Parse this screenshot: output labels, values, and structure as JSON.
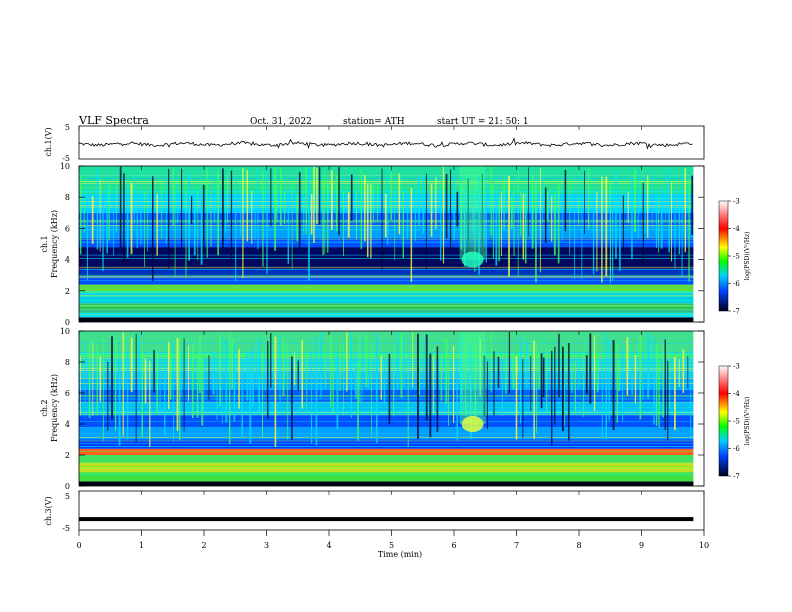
{
  "header": {
    "title": "VLF  Spectra",
    "date": "Oct. 31, 2022",
    "station": "station= ATH",
    "start": "start  UT  =    21: 50: 1"
  },
  "chart_data": [
    {
      "type": "line",
      "panel": "ch1-waveform",
      "ylabel": "ch.1(V)",
      "yticks": [
        "5",
        "-5"
      ],
      "ylim": [
        -5,
        5
      ],
      "xlim": [
        0,
        10
      ],
      "description_values": "noisy waveform around -0.5 V (~ -1 to 1 V)",
      "level": -0.5
    },
    {
      "type": "heatmap",
      "panel": "ch1-spectrogram",
      "ylabel": "ch.1\nFrequency  (kHz)",
      "ylabel_lines": [
        "ch.1",
        "Frequency  (kHz)"
      ],
      "yticks": [
        "0",
        "2",
        "4",
        "6",
        "8",
        "10"
      ],
      "ylim": [
        0,
        10
      ],
      "xlim": [
        0,
        10
      ],
      "data_end_min": 9.83,
      "event_time_min": 6.25,
      "event_freq_khz": 4.0
    },
    {
      "type": "heatmap",
      "panel": "ch2-spectrogram",
      "ylabel": "ch.2\nFrequency  (kHz)",
      "ylabel_lines": [
        "ch.2",
        "Frequency  (kHz)"
      ],
      "yticks": [
        "0",
        "2",
        "4",
        "6",
        "8",
        "10"
      ],
      "ylim": [
        0,
        10
      ],
      "xlim": [
        0,
        10
      ],
      "data_end_min": 9.83,
      "event_time_min": 6.25,
      "event_freq_khz": 4.0
    },
    {
      "type": "line",
      "panel": "ch3-waveform",
      "ylabel": "ch.3(V)",
      "yticks": [
        "5",
        "-5"
      ],
      "ylim": [
        -5,
        5
      ],
      "xlim": [
        0,
        10
      ],
      "level": -2.2
    }
  ],
  "xaxis": {
    "label": "Time  (min)",
    "ticks": [
      "0",
      "1",
      "2",
      "3",
      "4",
      "5",
      "6",
      "7",
      "8",
      "9",
      "10"
    ]
  },
  "colorbar": {
    "ticks": [
      "-3",
      "-4",
      "-5",
      "-6",
      "-7"
    ],
    "label": "log(PSD)(V²/Hz)",
    "colors": [
      "#ffffff",
      "#ff0000",
      "#ffff00",
      "#00ff00",
      "#00c8ff",
      "#0040ff",
      "#000030"
    ]
  }
}
